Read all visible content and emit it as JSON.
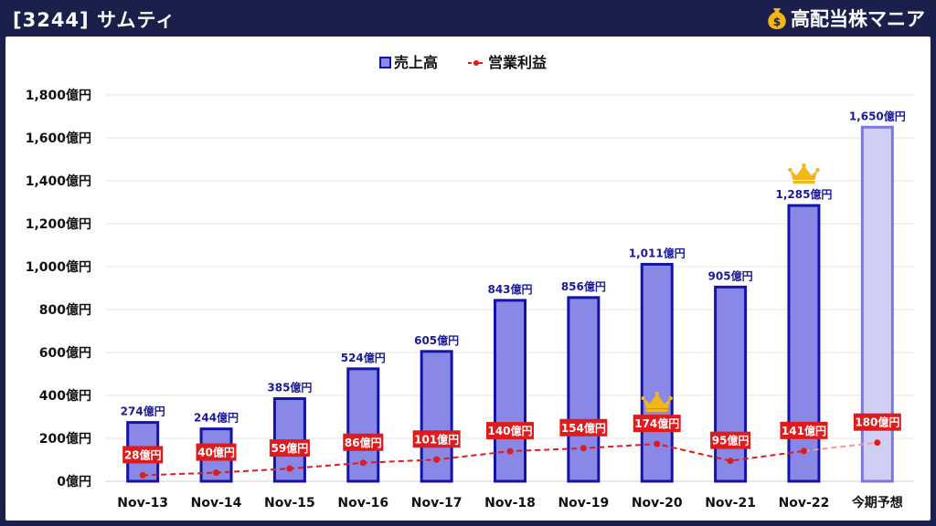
{
  "header": {
    "title": "[3244] サムティ",
    "brand": "高配当株マニア",
    "brand_icon": "money-bag-icon"
  },
  "colors": {
    "header_bg": "#1b1f4b",
    "bar_fill": "#8a88e6",
    "bar_stroke": "#1313a8",
    "forecast_fill": "#d0cff3",
    "forecast_stroke": "#7a78de",
    "line": "#e01b1b",
    "crown": "#f2b616"
  },
  "chart_data": {
    "type": "bar",
    "categories": [
      "Nov-13",
      "Nov-14",
      "Nov-15",
      "Nov-16",
      "Nov-17",
      "Nov-18",
      "Nov-19",
      "Nov-20",
      "Nov-21",
      "Nov-22",
      "今期予想"
    ],
    "series": [
      {
        "name": "売上高",
        "type": "bar",
        "values": [
          274,
          244,
          385,
          524,
          605,
          843,
          856,
          1011,
          905,
          1285,
          1650
        ],
        "labels": [
          "274億円",
          "244億円",
          "385億円",
          "524億円",
          "605億円",
          "843億円",
          "856億円",
          "1,011億円",
          "905億円",
          "1,285億円",
          "1,650億円"
        ]
      },
      {
        "name": "営業利益",
        "type": "line",
        "values": [
          28,
          40,
          59,
          86,
          101,
          140,
          154,
          174,
          95,
          141,
          180
        ],
        "labels": [
          "28億円",
          "40億円",
          "59億円",
          "86億円",
          "101億円",
          "140億円",
          "154億円",
          "174億円",
          "95億円",
          "141億円",
          "180億円"
        ]
      }
    ],
    "forecast_index": 10,
    "crowns": [
      {
        "series": "売上高",
        "index": 9
      },
      {
        "series": "営業利益",
        "index": 7
      }
    ],
    "ylim": [
      0,
      1800
    ],
    "yticks": [
      0,
      200,
      400,
      600,
      800,
      1000,
      1200,
      1400,
      1600,
      1800
    ],
    "ytick_labels": [
      "0億円",
      "200億円",
      "400億円",
      "600億円",
      "800億円",
      "1,000億円",
      "1,200億円",
      "1,400億円",
      "1,600億円",
      "1,800億円"
    ],
    "xlabel": "",
    "ylabel": "",
    "grid": true,
    "legend": "top-center"
  }
}
